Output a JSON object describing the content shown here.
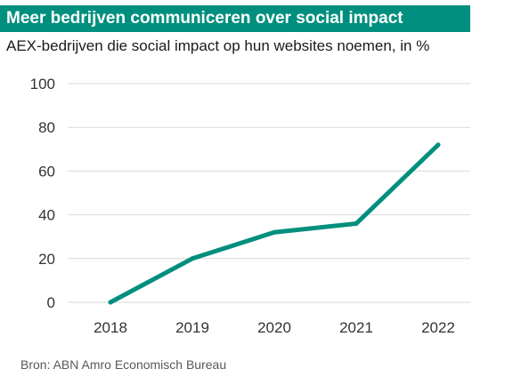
{
  "header": {
    "title": "Meer bedrijven communiceren over social impact",
    "subtitle": "AEX-bedrijven die social impact op hun websites noemen, in %"
  },
  "footer": {
    "source": "Bron: ABN Amro Economisch Bureau"
  },
  "colors": {
    "accent": "#008f7e",
    "grid": "#d9d9d9"
  },
  "chart_data": {
    "type": "line",
    "title": "Meer bedrijven communiceren over social impact",
    "subtitle": "AEX-bedrijven die social impact op hun websites noemen, in %",
    "categories": [
      "2018",
      "2019",
      "2020",
      "2021",
      "2022"
    ],
    "series": [
      {
        "values": [
          0,
          20,
          32,
          36,
          72
        ]
      }
    ],
    "ylim": [
      0,
      100
    ],
    "yticks": [
      0,
      20,
      40,
      60,
      80,
      100
    ],
    "grid": true,
    "legend": "none"
  }
}
